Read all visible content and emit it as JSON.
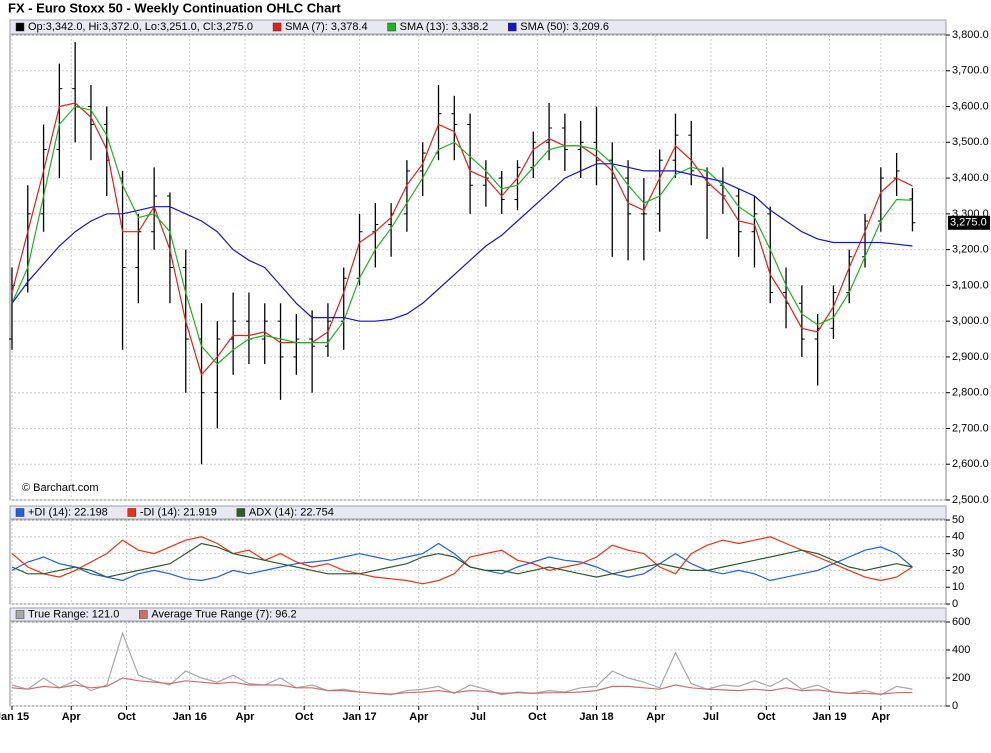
{
  "chart_data": [
    {
      "type": "ohlc",
      "title": "FX - Euro Stoxx 50 - Weekly Continuation OHLC Chart",
      "credit": "© Barchart.com",
      "ohlc_legend": "Op:3,342.0, Hi:3,372.0, Lo:3,251.0, Cl:3,275.0",
      "last_label": "3,275.0",
      "color": "#000000",
      "grid": true,
      "x": [
        0,
        4,
        8,
        12,
        16,
        20,
        24,
        28,
        32,
        36,
        40,
        44,
        48,
        52,
        56,
        60,
        64,
        68,
        72,
        76,
        80,
        84,
        88,
        92,
        96,
        100,
        104,
        108,
        112,
        116,
        120,
        124,
        128,
        132,
        136,
        140,
        144,
        148,
        152,
        156,
        160,
        164,
        168,
        172,
        176,
        180,
        184,
        188,
        192,
        196,
        200,
        204,
        208,
        212,
        216,
        220,
        224,
        228
      ],
      "xlim": [
        -0.5,
        236.5
      ],
      "open": [
        2950,
        3100,
        3300,
        3480,
        3650,
        3600,
        3550,
        3400,
        3150,
        3250,
        3350,
        3150,
        2950,
        2800,
        2950,
        3000,
        2950,
        3000,
        2900,
        2950,
        2930,
        3000,
        3120,
        3250,
        3270,
        3300,
        3420,
        3470,
        3580,
        3550,
        3380,
        3400,
        3340,
        3430,
        3500,
        3540,
        3480,
        3500,
        3450,
        3400,
        3300,
        3300,
        3450,
        3520,
        3420,
        3380,
        3350,
        3250,
        3300,
        3080,
        3050,
        2950,
        2980,
        3080,
        3180,
        3280,
        3400,
        3342
      ],
      "high": [
        3150,
        3380,
        3550,
        3720,
        3780,
        3660,
        3600,
        3420,
        3300,
        3430,
        3360,
        3200,
        3050,
        3000,
        3080,
        3080,
        3050,
        3050,
        3020,
        3030,
        3050,
        3150,
        3300,
        3330,
        3330,
        3450,
        3500,
        3660,
        3630,
        3580,
        3450,
        3420,
        3450,
        3530,
        3610,
        3580,
        3560,
        3600,
        3500,
        3450,
        3400,
        3480,
        3580,
        3560,
        3430,
        3430,
        3370,
        3350,
        3320,
        3150,
        3100,
        3020,
        3100,
        3200,
        3300,
        3430,
        3470,
        3372
      ],
      "low": [
        2920,
        3080,
        3250,
        3400,
        3500,
        3450,
        3350,
        2920,
        3050,
        3200,
        3050,
        2800,
        2600,
        2700,
        2850,
        2880,
        2880,
        2780,
        2850,
        2800,
        2900,
        2920,
        3100,
        3150,
        3180,
        3250,
        3350,
        3450,
        3450,
        3300,
        3320,
        3300,
        3310,
        3400,
        3450,
        3420,
        3400,
        3380,
        3180,
        3170,
        3170,
        3250,
        3400,
        3380,
        3230,
        3300,
        3180,
        3150,
        3050,
        2980,
        2900,
        2820,
        2950,
        3050,
        3150,
        3250,
        3350,
        3251
      ],
      "close": [
        3100,
        3300,
        3480,
        3650,
        3600,
        3550,
        3450,
        3150,
        3250,
        3350,
        3150,
        2950,
        2800,
        2950,
        3000,
        2950,
        3000,
        2900,
        2950,
        2930,
        3000,
        3120,
        3250,
        3270,
        3300,
        3420,
        3470,
        3580,
        3550,
        3380,
        3400,
        3340,
        3430,
        3500,
        3540,
        3480,
        3500,
        3450,
        3400,
        3300,
        3300,
        3450,
        3520,
        3420,
        3380,
        3350,
        3250,
        3300,
        3080,
        3050,
        2950,
        2980,
        3080,
        3180,
        3280,
        3400,
        3420,
        3275
      ],
      "series": [
        {
          "name": "SMA (7): 3,378.4",
          "color": "#e0201a",
          "values": [
            3080,
            3250,
            3420,
            3600,
            3610,
            3570,
            3480,
            3250,
            3250,
            3320,
            3200,
            3000,
            2850,
            2900,
            2960,
            2960,
            2970,
            2940,
            2940,
            2940,
            2970,
            3080,
            3220,
            3250,
            3290,
            3380,
            3440,
            3550,
            3530,
            3420,
            3400,
            3350,
            3400,
            3480,
            3510,
            3490,
            3490,
            3460,
            3420,
            3330,
            3310,
            3400,
            3490,
            3450,
            3390,
            3350,
            3280,
            3270,
            3130,
            3060,
            2980,
            2970,
            3040,
            3150,
            3250,
            3360,
            3400,
            3378
          ]
        },
        {
          "name": "SMA (13): 3,338.2",
          "color": "#1fb41f",
          "values": [
            3050,
            3150,
            3350,
            3550,
            3600,
            3590,
            3520,
            3380,
            3290,
            3300,
            3250,
            3080,
            2930,
            2880,
            2920,
            2950,
            2960,
            2950,
            2940,
            2940,
            2940,
            3000,
            3120,
            3200,
            3260,
            3330,
            3400,
            3480,
            3500,
            3460,
            3420,
            3370,
            3380,
            3430,
            3480,
            3490,
            3490,
            3480,
            3440,
            3380,
            3330,
            3350,
            3410,
            3430,
            3420,
            3380,
            3320,
            3290,
            3200,
            3100,
            3020,
            2990,
            3010,
            3080,
            3180,
            3280,
            3340,
            3338
          ]
        },
        {
          "name": "SMA (50): 3,209.6",
          "color": "#1414d2",
          "values": [
            3050,
            3110,
            3160,
            3210,
            3250,
            3280,
            3300,
            3300,
            3310,
            3320,
            3320,
            3300,
            3280,
            3250,
            3200,
            3170,
            3150,
            3100,
            3050,
            3010,
            3010,
            3010,
            3000,
            3000,
            3005,
            3020,
            3050,
            3090,
            3130,
            3170,
            3210,
            3240,
            3280,
            3320,
            3360,
            3400,
            3420,
            3440,
            3440,
            3430,
            3420,
            3420,
            3420,
            3410,
            3400,
            3390,
            3370,
            3350,
            3310,
            3280,
            3250,
            3230,
            3220,
            3220,
            3220,
            3220,
            3215,
            3210
          ]
        }
      ],
      "ylim": [
        2500,
        3800
      ],
      "yticks": [
        {
          "value": 2500,
          "label": "2,500.0"
        },
        {
          "value": 2600,
          "label": "2,600.0"
        },
        {
          "value": 2700,
          "label": "2,700.0"
        },
        {
          "value": 2800,
          "label": "2,800.0"
        },
        {
          "value": 2900,
          "label": "2,900.0"
        },
        {
          "value": 3000,
          "label": "3,000.0"
        },
        {
          "value": 3100,
          "label": "3,100.0"
        },
        {
          "value": 3200,
          "label": "3,200.0"
        },
        {
          "value": 3300,
          "label": "3,300.0"
        },
        {
          "value": 3400,
          "label": "3,400.0"
        },
        {
          "value": 3500,
          "label": "3,500.0"
        },
        {
          "value": 3600,
          "label": "3,600.0"
        },
        {
          "value": 3700,
          "label": "3,700.0"
        },
        {
          "value": 3800,
          "label": "3,800.0"
        }
      ]
    },
    {
      "type": "line",
      "grid": true,
      "x": [
        0,
        4,
        8,
        12,
        16,
        20,
        24,
        28,
        32,
        36,
        40,
        44,
        48,
        52,
        56,
        60,
        64,
        68,
        72,
        76,
        80,
        84,
        88,
        92,
        96,
        100,
        104,
        108,
        112,
        116,
        120,
        124,
        128,
        132,
        136,
        140,
        144,
        148,
        152,
        156,
        160,
        164,
        168,
        172,
        176,
        180,
        184,
        188,
        192,
        196,
        200,
        204,
        208,
        212,
        216,
        220,
        224,
        228
      ],
      "xlim": [
        -0.5,
        236.5
      ],
      "series": [
        {
          "name": "+DI (14): 22.198",
          "color": "#1f5fe0",
          "values": [
            20,
            25,
            28,
            24,
            22,
            18,
            16,
            14,
            18,
            20,
            18,
            15,
            14,
            16,
            20,
            18,
            20,
            22,
            24,
            25,
            26,
            28,
            30,
            28,
            26,
            28,
            30,
            36,
            30,
            22,
            20,
            18,
            22,
            25,
            28,
            26,
            25,
            22,
            18,
            16,
            18,
            24,
            30,
            24,
            20,
            18,
            20,
            18,
            14,
            16,
            18,
            20,
            24,
            28,
            32,
            34,
            30,
            22
          ]
        },
        {
          "name": "-DI (14): 21.919",
          "color": "#f03010",
          "values": [
            30,
            22,
            18,
            16,
            20,
            25,
            30,
            38,
            32,
            30,
            34,
            38,
            40,
            36,
            30,
            32,
            26,
            30,
            25,
            22,
            24,
            20,
            18,
            16,
            15,
            14,
            12,
            14,
            18,
            28,
            30,
            32,
            26,
            24,
            20,
            22,
            24,
            28,
            35,
            32,
            30,
            22,
            18,
            30,
            35,
            38,
            36,
            38,
            40,
            36,
            32,
            28,
            24,
            20,
            16,
            14,
            16,
            22
          ]
        },
        {
          "name": "ADX (14): 22.754",
          "color": "#2e5a2e",
          "values": [
            22,
            18,
            18,
            20,
            22,
            20,
            16,
            18,
            20,
            22,
            24,
            30,
            36,
            34,
            30,
            28,
            26,
            24,
            22,
            20,
            18,
            18,
            18,
            20,
            22,
            24,
            28,
            30,
            28,
            22,
            20,
            20,
            18,
            20,
            22,
            20,
            18,
            16,
            18,
            20,
            22,
            24,
            22,
            20,
            20,
            22,
            24,
            26,
            28,
            30,
            32,
            30,
            26,
            22,
            20,
            22,
            24,
            22
          ]
        }
      ],
      "ylim": [
        0,
        50
      ],
      "yticks": [
        0,
        10,
        20,
        30,
        40,
        50
      ]
    },
    {
      "type": "line",
      "grid": true,
      "x": [
        0,
        4,
        8,
        12,
        16,
        20,
        24,
        28,
        32,
        36,
        40,
        44,
        48,
        52,
        56,
        60,
        64,
        68,
        72,
        76,
        80,
        84,
        88,
        92,
        96,
        100,
        104,
        108,
        112,
        116,
        120,
        124,
        128,
        132,
        136,
        140,
        144,
        148,
        152,
        156,
        160,
        164,
        168,
        172,
        176,
        180,
        184,
        188,
        192,
        196,
        200,
        204,
        208,
        212,
        216,
        220,
        224,
        228
      ],
      "xlim": [
        -0.5,
        236.5
      ],
      "xticks": [
        {
          "value": 0,
          "label": "Jan 15"
        },
        {
          "value": 15,
          "label": "Apr"
        },
        {
          "value": 29,
          "label": "Oct"
        },
        {
          "value": 45,
          "label": "Jan 16"
        },
        {
          "value": 59,
          "label": "Apr"
        },
        {
          "value": 74,
          "label": "Oct"
        },
        {
          "value": 88,
          "label": "Jan 17"
        },
        {
          "value": 103,
          "label": "Apr"
        },
        {
          "value": 118,
          "label": "Jul"
        },
        {
          "value": 133,
          "label": "Oct"
        },
        {
          "value": 148,
          "label": "Jan 18"
        },
        {
          "value": 163,
          "label": "Apr"
        },
        {
          "value": 177,
          "label": "Jul"
        },
        {
          "value": 191,
          "label": "Oct"
        },
        {
          "value": 207,
          "label": "Jan 19"
        },
        {
          "value": 220,
          "label": "Apr"
        }
      ],
      "series": [
        {
          "name": "True Range: 121.0",
          "color": "#a8a8a8",
          "values": [
            150,
            120,
            200,
            130,
            180,
            110,
            150,
            520,
            220,
            180,
            150,
            250,
            200,
            170,
            220,
            160,
            150,
            200,
            130,
            150,
            110,
            120,
            100,
            90,
            80,
            110,
            120,
            140,
            90,
            150,
            120,
            80,
            100,
            90,
            110,
            100,
            130,
            140,
            250,
            200,
            170,
            130,
            380,
            160,
            120,
            150,
            140,
            180,
            140,
            200,
            120,
            150,
            100,
            90,
            110,
            80,
            140,
            121
          ]
        },
        {
          "name": "Average True Range (7): 96.2",
          "color": "#c87070",
          "values": [
            130,
            120,
            140,
            130,
            150,
            130,
            140,
            200,
            180,
            170,
            160,
            180,
            170,
            160,
            170,
            150,
            150,
            150,
            130,
            130,
            110,
            110,
            100,
            90,
            85,
            95,
            100,
            110,
            95,
            110,
            105,
            90,
            95,
            90,
            95,
            95,
            100,
            110,
            140,
            140,
            130,
            120,
            150,
            130,
            120,
            115,
            110,
            120,
            110,
            130,
            110,
            115,
            100,
            90,
            90,
            85,
            95,
            96.2
          ]
        }
      ],
      "ylim": [
        0,
        600
      ],
      "yticks": [
        0,
        200,
        400,
        600
      ]
    }
  ]
}
